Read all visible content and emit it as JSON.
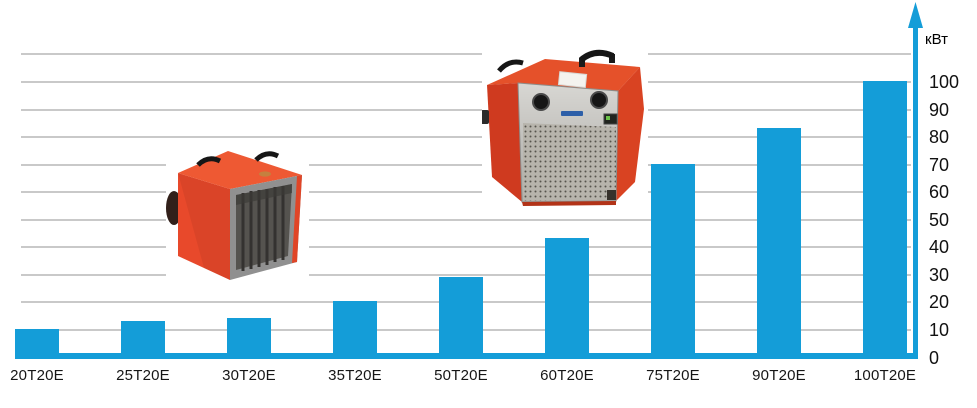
{
  "chart_data": {
    "type": "bar",
    "title": "",
    "categories": [
      "20T20E",
      "25T20E",
      "30T20E",
      "35T20E",
      "50T20E",
      "60T20E",
      "75T20E",
      "90T20E",
      "100T20E"
    ],
    "values": [
      10,
      13,
      14,
      20,
      29,
      43,
      70,
      83,
      100
    ],
    "xlabel": "",
    "ylabel": "кВт",
    "yticks": [
      0,
      10,
      20,
      30,
      40,
      50,
      60,
      70,
      80,
      90,
      100
    ],
    "ylim": [
      0,
      110
    ],
    "grid": true,
    "legend": "none",
    "y_axis_side": "right",
    "bar_color": "#149dd8"
  },
  "colors": {
    "accent": "#149dd8",
    "gridline": "#c9c9c9",
    "label_text": "#161616",
    "heater_red": "#e0452a"
  },
  "images": [
    {
      "name": "small-heater-photo",
      "description": "red cube electric fan heater, dark grille on right face, black handles on top"
    },
    {
      "name": "large-heater-photo",
      "description": "red electric fan heater with silver front panel, two black knobs and wire mesh grille"
    }
  ]
}
